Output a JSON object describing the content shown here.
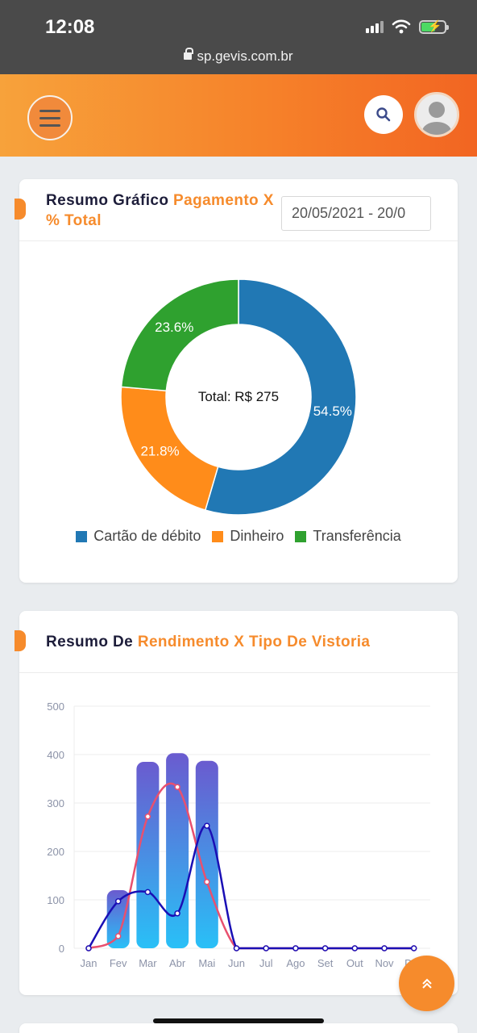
{
  "status_bar": {
    "time": "12:08",
    "url": "sp.gevis.com.br"
  },
  "header": {
    "menu_icon": "hamburger-menu-icon",
    "search_icon": "search-icon",
    "avatar_icon": "user-avatar-icon"
  },
  "payment_card": {
    "title_prefix": "Resumo Gráfico",
    "title_accent": "Pagamento X % Total",
    "date_range": "20/05/2021 - 20/0"
  },
  "payment_chart": {
    "chart_data": {
      "type": "pie",
      "center_label": "Total: R$ 275",
      "categories": [
        "Cartão de débito",
        "Dinheiro",
        "Transferência"
      ],
      "values": [
        54.5,
        21.8,
        23.6
      ],
      "labels": [
        "54.5%",
        "21.8%",
        "23.6%"
      ],
      "colors": [
        "#2178b4",
        "#ff8c1a",
        "#2fa12f"
      ],
      "legend": "bottom"
    }
  },
  "yield_card": {
    "title_prefix": "Resumo De",
    "title_accent": "Rendimento X Tipo De Vistoria"
  },
  "chart_data": {
    "type": "bar",
    "categories": [
      "Jan",
      "Fev",
      "Mar",
      "Abr",
      "Mai",
      "Jun",
      "Jul",
      "Ago",
      "Set",
      "Out",
      "Nov",
      "Dez"
    ],
    "ylim": [
      0,
      500
    ],
    "yticks": [
      0,
      100,
      200,
      300,
      400,
      500
    ],
    "grid": true,
    "series": [
      {
        "type": "bar",
        "values": [
          0,
          120,
          385,
          403,
          387,
          0,
          0,
          0,
          0,
          0,
          0,
          0
        ],
        "color": "#4ba6e8"
      },
      {
        "type": "line",
        "values": [
          0,
          25,
          272,
          333,
          137,
          0,
          0,
          0,
          0,
          0,
          0,
          0
        ],
        "color": "#e8506f"
      },
      {
        "type": "line",
        "values": [
          0,
          97,
          116,
          72,
          253,
          0,
          0,
          0,
          0,
          0,
          0,
          0
        ],
        "color": "#1a0fb5"
      }
    ]
  },
  "scroll_top": {
    "icon": "double-chevron-up-icon"
  }
}
